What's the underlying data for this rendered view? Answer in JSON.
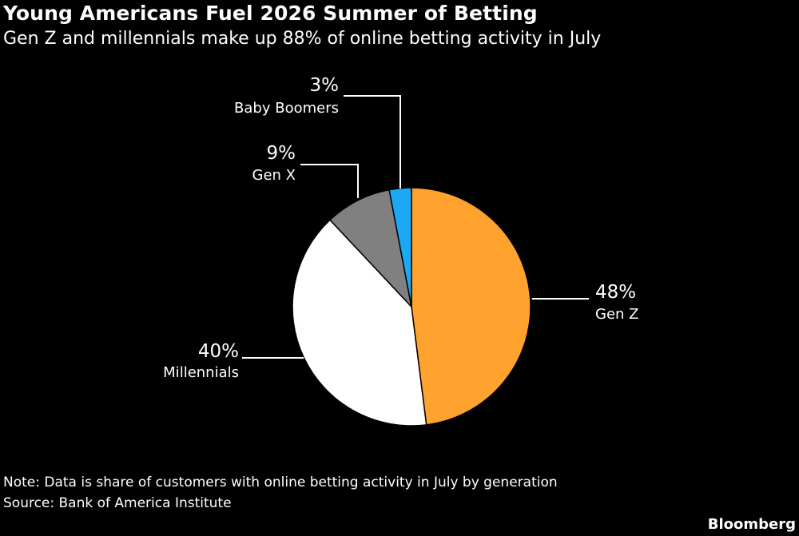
{
  "chart_data": {
    "type": "pie",
    "title": "Young Americans Fuel 2026 Summer of Betting",
    "subtitle": "Gen Z and millennials make up 88% of online betting activity in July",
    "slices": [
      {
        "label": "Gen Z",
        "value": 48,
        "value_label": "48%",
        "color": "#FFA22E"
      },
      {
        "label": "Millennials",
        "value": 40,
        "value_label": "40%",
        "color": "#FFFFFF"
      },
      {
        "label": "Gen X",
        "value": 9,
        "value_label": "9%",
        "color": "#808080"
      },
      {
        "label": "Baby Boomers",
        "value": 3,
        "value_label": "3%",
        "color": "#1DA8F3"
      }
    ],
    "start_angle": "12 o'clock",
    "direction": "clockwise"
  },
  "footer": {
    "note": "Note: Data is share of customers with online betting activity in July by generation",
    "source": "Source: Bank of America Institute",
    "brand": "Bloomberg"
  }
}
